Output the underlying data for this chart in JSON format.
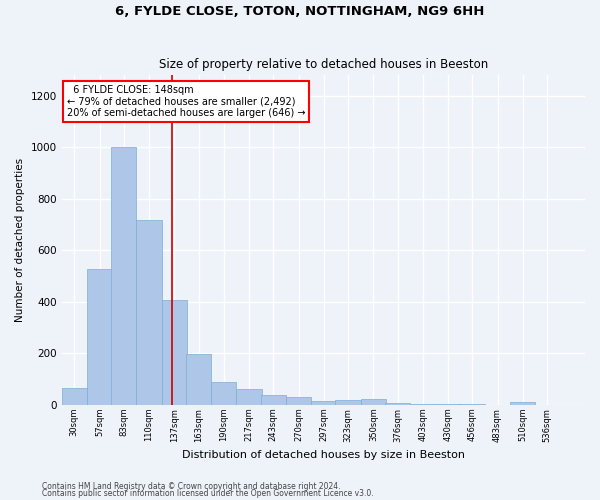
{
  "title1": "6, FYLDE CLOSE, TOTON, NOTTINGHAM, NG9 6HH",
  "title2": "Size of property relative to detached houses in Beeston",
  "xlabel": "Distribution of detached houses by size in Beeston",
  "ylabel": "Number of detached properties",
  "footer1": "Contains HM Land Registry data © Crown copyright and database right 2024.",
  "footer2": "Contains public sector information licensed under the Open Government Licence v3.0.",
  "annotation_line1": "  6 FYLDE CLOSE: 148sqm  ",
  "annotation_line2": "← 79% of detached houses are smaller (2,492)",
  "annotation_line3": "20% of semi-detached houses are larger (646) →",
  "bar_color": "#aec6e8",
  "bar_edge_color": "#7aafd4",
  "vline_color": "#cc0000",
  "vline_x": 148,
  "bin_starts": [
    30,
    57,
    83,
    110,
    137,
    163,
    190,
    217,
    243,
    270,
    297,
    323,
    350,
    376,
    403,
    430,
    456,
    483,
    510,
    536
  ],
  "bin_width": 27,
  "bar_heights": [
    65,
    527,
    1000,
    717,
    407,
    197,
    90,
    62,
    40,
    32,
    17,
    20,
    22,
    7,
    4,
    4,
    4,
    1,
    10,
    1
  ],
  "ylim": [
    0,
    1280
  ],
  "yticks": [
    0,
    200,
    400,
    600,
    800,
    1000,
    1200
  ],
  "xlim_left": 30,
  "xlim_right": 590,
  "background_color": "#eef2f9",
  "grid_color": "#ffffff",
  "title1_fontsize": 9.5,
  "title2_fontsize": 8.5,
  "ylabel_fontsize": 7.5,
  "xlabel_fontsize": 8,
  "ytick_fontsize": 7.5,
  "xtick_fontsize": 6,
  "annotation_fontsize": 7,
  "footer_fontsize": 5.5
}
